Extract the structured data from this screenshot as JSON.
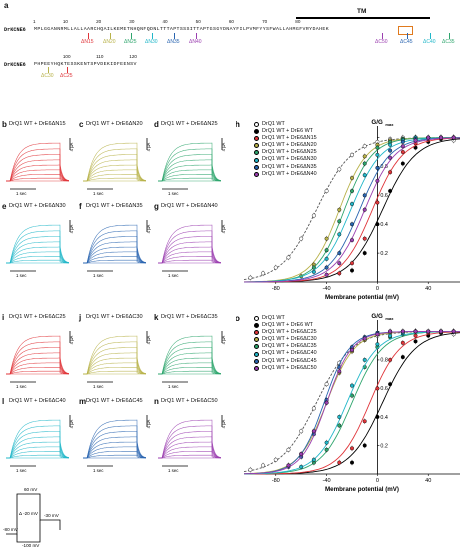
{
  "panel_a": {
    "letter": "a",
    "tm_label": "TM",
    "seq_name": "DrKCNE6",
    "line1": "MPLGGANNRMLLALLAARCHQAILKEMETNHQNFQDNLTTTAPTSSSITTAPTGSGYDNAYFILPVMFYYSFWALLAHMGFVRYDAHEK",
    "line2": "PHPEEYHQKTESSKENTSPVDEKIDFEENSV",
    "ticks_line1": [
      "1",
      "10",
      "20",
      "30",
      "40",
      "50",
      "60",
      "70",
      "80"
    ],
    "ticks_line2": [
      "100",
      "110",
      "120"
    ],
    "n_deletions": [
      {
        "label": "ΔN15",
        "color": "#e0353a"
      },
      {
        "label": "ΔN20",
        "color": "#b8b24a"
      },
      {
        "label": "ΔN25",
        "color": "#2ea56d"
      },
      {
        "label": "ΔN30",
        "color": "#21b7c9"
      },
      {
        "label": "ΔN35",
        "color": "#2a65b0"
      },
      {
        "label": "ΔN40",
        "color": "#9b3fb0"
      }
    ],
    "c_deletions_line1": [
      {
        "label": "ΔC50",
        "color": "#9b3fb0"
      },
      {
        "label": "ΔC45",
        "color": "#2a65b0"
      },
      {
        "label": "ΔC40",
        "color": "#21b7c9"
      },
      {
        "label": "ΔC35",
        "color": "#2ea56d"
      }
    ],
    "c_deletions_line2": [
      {
        "label": "ΔC30",
        "color": "#b8b24a"
      },
      {
        "label": "ΔC25",
        "color": "#e0353a"
      }
    ]
  },
  "trace_panels_top": [
    {
      "letter": "b",
      "title": "DrQ1 WT + DrE6ΔN15",
      "color": "#e0353a"
    },
    {
      "letter": "c",
      "title": "DrQ1 WT + DrE6ΔN20",
      "color": "#b8b24a"
    },
    {
      "letter": "d",
      "title": "DrQ1 WT + DrE6ΔN25",
      "color": "#2ea56d"
    },
    {
      "letter": "e",
      "title": "DrQ1 WT + DrE6ΔN30",
      "color": "#21b7c9"
    },
    {
      "letter": "f",
      "title": "DrQ1 WT + DrE6ΔN35",
      "color": "#2a65b0"
    },
    {
      "letter": "g",
      "title": "DrQ1 WT + DrE6ΔN40",
      "color": "#9b3fb0"
    }
  ],
  "trace_panels_bottom": [
    {
      "letter": "i",
      "title": "DrQ1 WT + DrE6ΔC25",
      "color": "#e0353a"
    },
    {
      "letter": "j",
      "title": "DrQ1 WT + DrE6ΔC30",
      "color": "#b8b24a"
    },
    {
      "letter": "k",
      "title": "DrQ1 WT + DrE6ΔC35",
      "color": "#2ea56d"
    },
    {
      "letter": "l",
      "title": "DrQ1 WT + DrE6ΔC40",
      "color": "#21b7c9"
    },
    {
      "letter": "m",
      "title": "DrQ1 WT + DrE6ΔC45",
      "color": "#2a65b0"
    },
    {
      "letter": "n",
      "title": "DrQ1 WT + DrE6ΔC50",
      "color": "#9b3fb0"
    }
  ],
  "scale_labels": {
    "time": "1 sec",
    "current": "4 μA"
  },
  "protocol": {
    "v_hold": "-80 mV",
    "v_top": "60 mV",
    "v_step": "Δ -20 mV",
    "v_tail": "-30 mV",
    "v_bottom": "-100 mV"
  },
  "chart_data": [
    {
      "letter": "h",
      "type": "scatter",
      "ylabel": "G/G",
      "ylabel_sub": "max",
      "xlabel": "Membrane potential (mV)",
      "xticks": [
        -80,
        -40,
        0,
        40
      ],
      "yticks": [
        0.2,
        0.4,
        0.6,
        0.8,
        1.0
      ],
      "xlim": [
        -105,
        65
      ],
      "ylim": [
        0,
        1.08
      ],
      "series": [
        {
          "name": "DrQ1 WT",
          "color": "#ffffff",
          "stroke": "#555555",
          "v50": -48,
          "k": 14,
          "dashed": true,
          "x": [
            -100,
            -90,
            -80,
            -70,
            -60,
            -50,
            -40,
            -30,
            -20,
            -10,
            0,
            10,
            20,
            30,
            40,
            50,
            60
          ],
          "y": [
            0.03,
            0.06,
            0.1,
            0.17,
            0.3,
            0.46,
            0.63,
            0.78,
            0.88,
            0.94,
            0.97,
            0.99,
            1.0,
            1.0,
            1.0,
            0.99,
            0.98
          ]
        },
        {
          "name": "DrQ1 WT + DrE6 WT",
          "color": "#000000",
          "v50": 4,
          "k": 13,
          "x": [
            -20,
            -10,
            0,
            10,
            20,
            30,
            40,
            50,
            60
          ],
          "y": [
            0.08,
            0.2,
            0.4,
            0.63,
            0.82,
            0.93,
            0.97,
            0.99,
            1.0
          ]
        },
        {
          "name": "DrQ1 WT + DrE6ΔN15",
          "color": "#e0353a",
          "v50": -4,
          "k": 12,
          "x": [
            -30,
            -20,
            -10,
            0,
            10,
            20,
            30,
            40,
            50,
            60
          ],
          "y": [
            0.06,
            0.13,
            0.3,
            0.55,
            0.76,
            0.9,
            0.96,
            0.99,
            1.0,
            1.0
          ]
        },
        {
          "name": "DrQ1 WT + DrE6ΔN20",
          "color": "#b8b24a",
          "v50": -30,
          "k": 11,
          "x": [
            -60,
            -50,
            -40,
            -30,
            -20,
            -10,
            0,
            10,
            20,
            30,
            40,
            50,
            60
          ],
          "y": [
            0.04,
            0.12,
            0.3,
            0.5,
            0.72,
            0.87,
            0.95,
            0.98,
            0.99,
            1.0,
            1.0,
            1.0,
            1.0
          ]
        },
        {
          "name": "DrQ1 WT + DrE6ΔN25",
          "color": "#2ea56d",
          "v50": -26,
          "k": 11,
          "x": [
            -50,
            -40,
            -30,
            -20,
            -10,
            0,
            10,
            20,
            30,
            40,
            50,
            60
          ],
          "y": [
            0.1,
            0.22,
            0.42,
            0.63,
            0.82,
            0.93,
            0.97,
            0.99,
            1.0,
            1.0,
            1.0,
            1.0
          ]
        },
        {
          "name": "DrQ1 WT + DrE6ΔN30",
          "color": "#21b7c9",
          "v50": -21,
          "k": 12,
          "x": [
            -50,
            -40,
            -30,
            -20,
            -10,
            0,
            10,
            20,
            30,
            40,
            50,
            60
          ],
          "y": [
            0.07,
            0.16,
            0.33,
            0.54,
            0.74,
            0.88,
            0.95,
            0.98,
            1.0,
            1.0,
            1.0,
            1.0
          ]
        },
        {
          "name": "DrQ1 WT + DrE6ΔN35",
          "color": "#2a65b0",
          "v50": -14,
          "k": 12,
          "x": [
            -40,
            -30,
            -20,
            -10,
            0,
            10,
            20,
            30,
            40,
            50,
            60
          ],
          "y": [
            0.1,
            0.2,
            0.4,
            0.6,
            0.79,
            0.91,
            0.97,
            0.99,
            1.0,
            1.0,
            1.0
          ]
        },
        {
          "name": "DrQ1 WT + DrE6ΔN40",
          "color": "#9b3fb0",
          "v50": -10,
          "k": 12,
          "x": [
            -40,
            -30,
            -20,
            -10,
            0,
            10,
            20,
            30,
            40,
            50,
            60
          ],
          "y": [
            0.05,
            0.13,
            0.29,
            0.5,
            0.7,
            0.86,
            0.94,
            0.98,
            1.0,
            1.0,
            1.0
          ]
        }
      ]
    },
    {
      "letter": "o",
      "type": "scatter",
      "ylabel": "G/G",
      "ylabel_sub": "max",
      "xlabel": "Membrane potential (mV)",
      "xticks": [
        -80,
        -40,
        0,
        40
      ],
      "yticks": [
        0.2,
        0.4,
        0.6,
        0.8,
        1.0
      ],
      "xlim": [
        -105,
        65
      ],
      "ylim": [
        0,
        1.08
      ],
      "series": [
        {
          "name": "DrQ1 WT",
          "color": "#ffffff",
          "stroke": "#555555",
          "v50": -48,
          "k": 14,
          "dashed": true,
          "x": [
            -100,
            -90,
            -80,
            -70,
            -60,
            -50,
            -40,
            -30,
            -20,
            -10,
            0,
            10,
            20,
            30,
            40,
            50,
            60
          ],
          "y": [
            0.03,
            0.06,
            0.1,
            0.17,
            0.3,
            0.46,
            0.63,
            0.78,
            0.88,
            0.94,
            0.97,
            0.99,
            1.0,
            1.0,
            1.0,
            0.99,
            0.98
          ]
        },
        {
          "name": "DrQ1 WT + DrE6 WT",
          "color": "#000000",
          "v50": 4,
          "k": 13,
          "x": [
            -20,
            -10,
            0,
            10,
            20,
            30,
            40,
            50,
            60
          ],
          "y": [
            0.08,
            0.2,
            0.4,
            0.63,
            0.82,
            0.93,
            0.97,
            0.99,
            1.0
          ]
        },
        {
          "name": "DrQ1 WT + DrE6ΔC25",
          "color": "#e0353a",
          "v50": -6,
          "k": 12,
          "x": [
            -30,
            -20,
            -10,
            0,
            10,
            20,
            30,
            40,
            50,
            60
          ],
          "y": [
            0.08,
            0.18,
            0.37,
            0.6,
            0.8,
            0.92,
            0.97,
            0.99,
            1.0,
            1.0
          ]
        },
        {
          "name": "DrQ1 WT + DrE6ΔC30",
          "color": "#b8b24a",
          "v50": -40,
          "k": 11,
          "x": [
            -70,
            -60,
            -50,
            -40,
            -30,
            -20,
            -10,
            0,
            10,
            20,
            30,
            40,
            50,
            60
          ],
          "y": [
            0.06,
            0.14,
            0.3,
            0.5,
            0.71,
            0.86,
            0.94,
            0.98,
            0.99,
            1.0,
            1.0,
            1.0,
            1.0,
            1.0
          ]
        },
        {
          "name": "DrQ1 WT + DrE6ΔC35",
          "color": "#2ea56d",
          "v50": -20,
          "k": 12,
          "x": [
            -50,
            -40,
            -30,
            -20,
            -10,
            0,
            10,
            20,
            30,
            40,
            50,
            60
          ],
          "y": [
            0.08,
            0.17,
            0.34,
            0.55,
            0.75,
            0.89,
            0.96,
            0.98,
            1.0,
            1.0,
            1.0,
            1.0
          ]
        },
        {
          "name": "DrQ1 WT + DrE6ΔC40",
          "color": "#21b7c9",
          "v50": -24,
          "k": 12,
          "x": [
            -60,
            -50,
            -40,
            -30,
            -20,
            -10,
            0,
            10,
            20,
            30,
            40,
            50,
            60
          ],
          "y": [
            0.05,
            0.1,
            0.22,
            0.4,
            0.62,
            0.8,
            0.91,
            0.97,
            0.99,
            1.0,
            1.0,
            1.0,
            1.0
          ]
        },
        {
          "name": "DrQ1 WT + DrE6ΔC45",
          "color": "#2a65b0",
          "v50": -42,
          "k": 10,
          "x": [
            -70,
            -60,
            -50,
            -40,
            -30,
            -20,
            -10,
            0,
            10,
            20,
            30,
            40,
            50,
            60
          ],
          "y": [
            0.05,
            0.12,
            0.28,
            0.52,
            0.75,
            0.89,
            0.96,
            0.99,
            1.0,
            1.0,
            1.0,
            1.0,
            1.0,
            1.0
          ]
        },
        {
          "name": "DrQ1 WT + DrE6ΔC50",
          "color": "#9b3fb0",
          "v50": -40,
          "k": 10,
          "x": [
            -70,
            -60,
            -50,
            -40,
            -30,
            -20,
            -10,
            0,
            10,
            20,
            30,
            40,
            50,
            60
          ],
          "y": [
            0.06,
            0.14,
            0.3,
            0.5,
            0.72,
            0.87,
            0.95,
            0.98,
            1.0,
            1.0,
            1.0,
            1.0,
            1.0,
            1.0
          ]
        }
      ]
    }
  ]
}
